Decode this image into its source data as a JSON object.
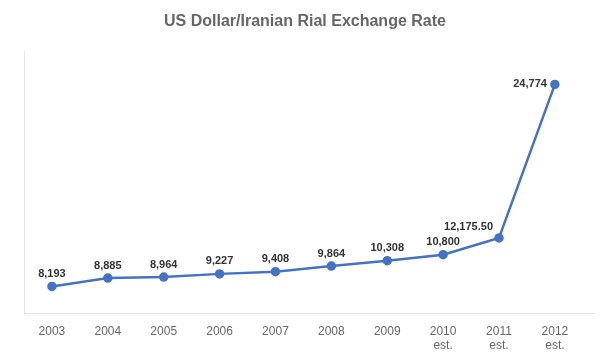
{
  "chart_data": {
    "type": "line",
    "title": "US Dollar/Iranian Rial Exchange Rate",
    "x": [
      2003,
      2004,
      2005,
      2006,
      2007,
      2008,
      2009,
      2010,
      2011,
      2012
    ],
    "values": [
      8193,
      8885,
      8964,
      9227,
      9408,
      9864,
      10308,
      10800,
      12175.5,
      24774
    ],
    "value_labels": [
      "8,193",
      "8,885",
      "8,964",
      "9,227",
      "9,408",
      "9,864",
      "10,308",
      "10,800",
      "12,175.50",
      "24,774"
    ],
    "data_labels": true,
    "color": "#4472C4",
    "marker": "circle",
    "xlim": [
      2002.5,
      2012.7
    ],
    "xticks": [
      2003,
      2004,
      2005,
      2006,
      2007,
      2008,
      2009,
      {
        "value": 2010,
        "label": "2010\nest."
      },
      {
        "value": 2011,
        "label": "2011\nest."
      },
      {
        "value": 2012,
        "label": "2012\nest."
      }
    ],
    "ylim": [
      6000,
      27500
    ],
    "tick_labels": "x",
    "grid": false
  }
}
